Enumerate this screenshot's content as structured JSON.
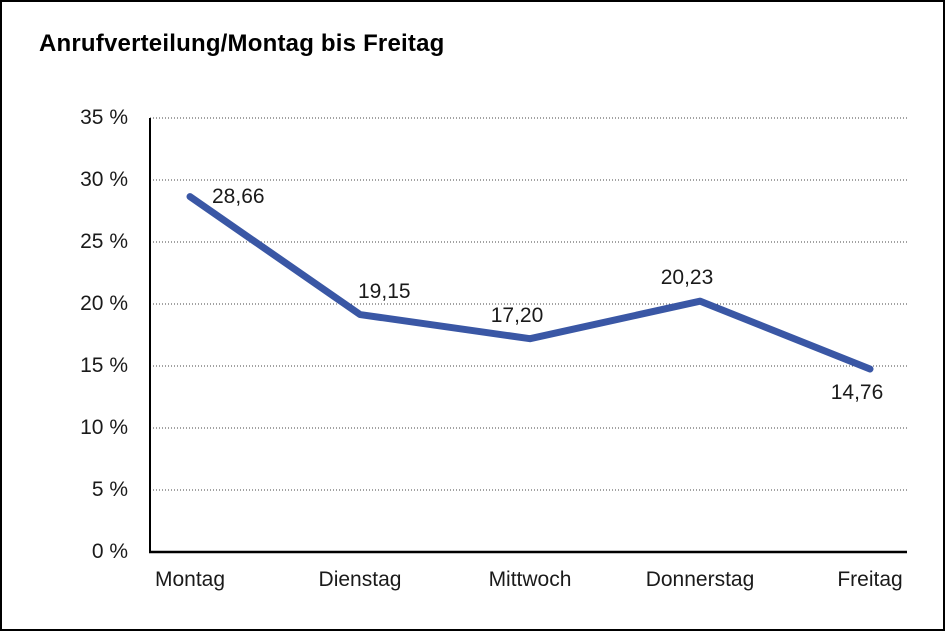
{
  "chart_data": {
    "type": "line",
    "title": "Anrufverteilung/Montag bis Freitag",
    "categories": [
      "Montag",
      "Dienstag",
      "Mittwoch",
      "Donnerstag",
      "Freitag"
    ],
    "series": [
      {
        "name": "Anrufverteilung",
        "values": [
          28.66,
          19.15,
          17.2,
          20.23,
          14.76
        ]
      }
    ],
    "value_labels": [
      "28,66",
      "19,15",
      "17,20",
      "20,23",
      "14,76"
    ],
    "value_label_positions": [
      "right",
      "above-right",
      "above",
      "above",
      "below"
    ],
    "xlabel": "",
    "ylabel": "",
    "ylim": [
      0,
      35
    ],
    "yticks": [
      {
        "label": "35 %",
        "value": 35
      },
      {
        "label": "30 %",
        "value": 30
      },
      {
        "label": "25 %",
        "value": 25
      },
      {
        "label": "20 %",
        "value": 20
      },
      {
        "label": "15 %",
        "value": 15
      },
      {
        "label": "10 %",
        "value": 10
      },
      {
        "label": "5 %",
        "value": 5
      },
      {
        "label": "0 %",
        "value": 0
      }
    ],
    "grid": "horizontal-dotted",
    "legend": "none",
    "line_color": "#3A57A5"
  },
  "colors": {
    "background": "#FFFFFF",
    "border": "#000000",
    "axis": "#000000",
    "grid": "#444444",
    "text": "#1A1A1A",
    "line": "#3A57A5"
  }
}
